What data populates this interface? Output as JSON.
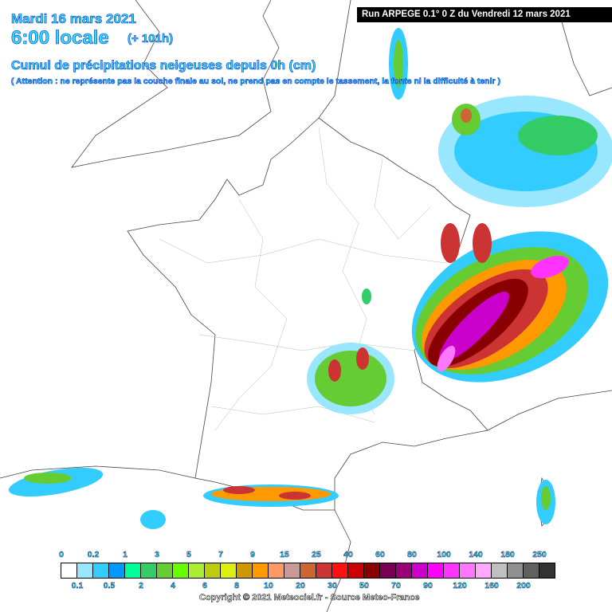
{
  "header": {
    "date": "Mardi 16 mars 2021",
    "time": "6:00 locale",
    "lead": "(+ 101h)",
    "subtitle": "Cumul de précipitations neigeuses depuis 0h (cm)",
    "warning": "( Attention : ne représente pas la couche finale au sol, ne prend pas en compte le tassement, la fonte ni la difficulté à tenir )",
    "run": "Run ARPEGE 0.1° 0 Z du Vendredi 12 mars 2021"
  },
  "legend": {
    "labels": [
      "0",
      "0.1",
      "0.2",
      "0.5",
      "1",
      "2",
      "3",
      "4",
      "5",
      "6",
      "7",
      "8",
      "9",
      "10",
      "15",
      "20",
      "25",
      "30",
      "40",
      "50",
      "60",
      "70",
      "80",
      "90",
      "100",
      "120",
      "140",
      "160",
      "180",
      "200",
      "250"
    ],
    "colors": [
      "#ffffff",
      "#99e6ff",
      "#33ccff",
      "#0099ff",
      "#00ff99",
      "#33cc66",
      "#66cc33",
      "#66ff00",
      "#aaee33",
      "#bbcc11",
      "#ddee11",
      "#cc9900",
      "#ff9900",
      "#ff9966",
      "#cc9999",
      "#cc6633",
      "#cc3333",
      "#ff1111",
      "#cc0000",
      "#880000",
      "#770055",
      "#990077",
      "#cc00cc",
      "#ff00ff",
      "#ff33ff",
      "#ff77ff",
      "#ffaaff",
      "#c0c0c0",
      "#909090",
      "#606060",
      "#333333"
    ]
  },
  "copyright": "Copyright © 2021 Meteociel.fr - Source Meteo-France"
}
